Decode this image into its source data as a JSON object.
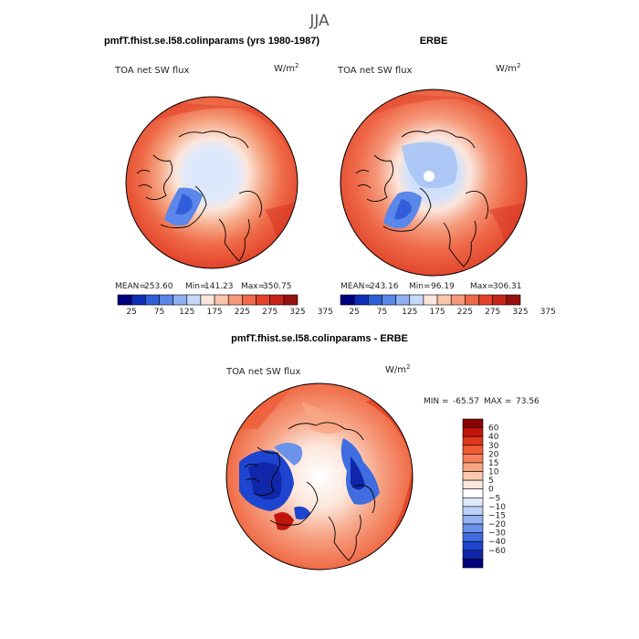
{
  "page": {
    "title": "JJA"
  },
  "chart_data": [
    {
      "type": "heatmap",
      "title": "pmfT.fhist.se.l58.colinparams (yrs 1980-1987)",
      "field": "TOA net SW flux",
      "units": "W/m",
      "units_sup": "2",
      "projection": "north-polar-stereographic",
      "stats": {
        "mean_label": "MEAN=",
        "mean": "253.60",
        "min_label": "Min=",
        "min": "141.23",
        "max_label": "Max=",
        "max": "350.75"
      },
      "colorbar": {
        "orientation": "horizontal",
        "tick_labels": [
          "25",
          "75",
          "125",
          "175",
          "225",
          "275",
          "325",
          "375"
        ],
        "colors": [
          "#00007f",
          "#0d2fb7",
          "#2f5ed8",
          "#5b86ea",
          "#8fb1f4",
          "#c5d9fa",
          "#fbe6dc",
          "#f9c5ac",
          "#f5997a",
          "#ee6a4a",
          "#e2432a",
          "#c8241a",
          "#961010"
        ]
      }
    },
    {
      "type": "heatmap",
      "title": "ERBE",
      "field": "TOA net SW flux",
      "units": "W/m",
      "units_sup": "2",
      "projection": "north-polar-stereographic",
      "stats": {
        "mean_label": "MEAN=",
        "mean": "243.16",
        "min_label": "Min=",
        "min": "96.19",
        "max_label": "Max=",
        "max": "306.31"
      },
      "colorbar": {
        "orientation": "horizontal",
        "tick_labels": [
          "25",
          "75",
          "125",
          "175",
          "225",
          "275",
          "325",
          "375"
        ],
        "colors": [
          "#00007f",
          "#0d2fb7",
          "#2f5ed8",
          "#5b86ea",
          "#8fb1f4",
          "#c5d9fa",
          "#fbe6dc",
          "#f9c5ac",
          "#f5997a",
          "#ee6a4a",
          "#e2432a",
          "#c8241a",
          "#961010"
        ]
      }
    },
    {
      "type": "heatmap",
      "title": "pmfT.fhist.se.l58.colinparams - ERBE",
      "field": "TOA net SW flux",
      "units": "W/m",
      "units_sup": "2",
      "projection": "north-polar-stereographic",
      "stats": {
        "min_label": "MIN =",
        "min": "-65.57",
        "max_label": "MAX =",
        "max": "73.56"
      },
      "colorbar": {
        "orientation": "vertical",
        "tick_labels": [
          "60",
          "40",
          "30",
          "20",
          "15",
          "10",
          "5",
          "0",
          "-5",
          "-10",
          "-15",
          "-20",
          "-30",
          "-40",
          "-60"
        ],
        "colors": [
          "#8b0000",
          "#c0140c",
          "#e0361c",
          "#ee5a34",
          "#f5805a",
          "#f9a583",
          "#fcc9b0",
          "#fde7dc",
          "#ffffff",
          "#dfe9fb",
          "#bcd1f7",
          "#93b3f1",
          "#6b92ea",
          "#3f6de0",
          "#1d45cf",
          "#0f27a8",
          "#00007f"
        ]
      }
    }
  ]
}
